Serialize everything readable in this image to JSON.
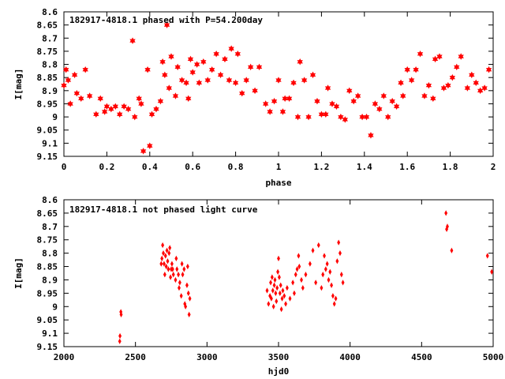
{
  "chart_data": [
    {
      "type": "scatter",
      "title": "182917-4818.1 phased with P=54.200day",
      "xlabel": "phase",
      "ylabel": "I[mag]",
      "xlim": [
        0,
        2
      ],
      "ylim": [
        9.15,
        8.6
      ],
      "y_inverted": true,
      "grid": false,
      "color": "#ff0000",
      "marker": "star",
      "x_ticks": [
        "0",
        "0.2",
        "0.4",
        "0.6",
        "0.8",
        "1",
        "1.2",
        "1.4",
        "1.6",
        "1.8",
        "2"
      ],
      "y_ticks": [
        "8.6",
        "8.65",
        "8.7",
        "8.75",
        "8.8",
        "8.85",
        "8.9",
        "8.95",
        "9",
        "9.05",
        "9.1",
        "9.15"
      ],
      "series": [
        {
          "points": [
            [
              0.0,
              8.88
            ],
            [
              0.01,
              8.82
            ],
            [
              0.02,
              8.86
            ],
            [
              0.03,
              8.95
            ],
            [
              0.05,
              8.84
            ],
            [
              0.06,
              8.91
            ],
            [
              0.08,
              8.93
            ],
            [
              0.1,
              8.82
            ],
            [
              0.12,
              8.92
            ],
            [
              0.15,
              8.99
            ],
            [
              0.17,
              8.93
            ],
            [
              0.19,
              8.98
            ],
            [
              0.2,
              8.96
            ],
            [
              0.22,
              8.97
            ],
            [
              0.24,
              8.96
            ],
            [
              0.26,
              8.99
            ],
            [
              0.28,
              8.96
            ],
            [
              0.3,
              8.97
            ],
            [
              0.32,
              8.71
            ],
            [
              0.33,
              9.0
            ],
            [
              0.35,
              8.93
            ],
            [
              0.36,
              8.95
            ],
            [
              0.37,
              9.13
            ],
            [
              0.39,
              8.82
            ],
            [
              0.4,
              9.11
            ],
            [
              0.41,
              8.99
            ],
            [
              0.43,
              8.97
            ],
            [
              0.45,
              8.94
            ],
            [
              0.46,
              8.79
            ],
            [
              0.47,
              8.84
            ],
            [
              0.48,
              8.65
            ],
            [
              0.49,
              8.89
            ],
            [
              0.5,
              8.77
            ],
            [
              0.52,
              8.92
            ],
            [
              0.53,
              8.81
            ],
            [
              0.55,
              8.86
            ],
            [
              0.57,
              8.87
            ],
            [
              0.58,
              8.93
            ],
            [
              0.59,
              8.78
            ],
            [
              0.6,
              8.83
            ],
            [
              0.62,
              8.8
            ],
            [
              0.63,
              8.87
            ],
            [
              0.65,
              8.79
            ],
            [
              0.67,
              8.86
            ],
            [
              0.69,
              8.82
            ],
            [
              0.71,
              8.76
            ],
            [
              0.73,
              8.84
            ],
            [
              0.75,
              8.78
            ],
            [
              0.77,
              8.86
            ],
            [
              0.78,
              8.74
            ],
            [
              0.8,
              8.87
            ],
            [
              0.81,
              8.76
            ],
            [
              0.83,
              8.91
            ],
            [
              0.85,
              8.86
            ],
            [
              0.87,
              8.81
            ],
            [
              0.89,
              8.9
            ],
            [
              0.91,
              8.81
            ],
            [
              0.94,
              8.95
            ],
            [
              0.96,
              8.98
            ],
            [
              0.98,
              8.94
            ],
            [
              1.0,
              8.86
            ],
            [
              1.02,
              8.98
            ],
            [
              1.03,
              8.93
            ],
            [
              1.05,
              8.93
            ],
            [
              1.07,
              8.87
            ],
            [
              1.09,
              9.0
            ],
            [
              1.1,
              8.79
            ],
            [
              1.12,
              8.86
            ],
            [
              1.14,
              9.0
            ],
            [
              1.16,
              8.84
            ],
            [
              1.18,
              8.94
            ],
            [
              1.2,
              8.99
            ],
            [
              1.22,
              8.99
            ],
            [
              1.23,
              8.89
            ],
            [
              1.25,
              8.95
            ],
            [
              1.27,
              8.96
            ],
            [
              1.29,
              9.0
            ],
            [
              1.31,
              9.01
            ],
            [
              1.33,
              8.9
            ],
            [
              1.35,
              8.94
            ],
            [
              1.37,
              8.92
            ],
            [
              1.39,
              9.0
            ],
            [
              1.41,
              9.0
            ],
            [
              1.43,
              9.07
            ],
            [
              1.45,
              8.95
            ],
            [
              1.47,
              8.97
            ],
            [
              1.49,
              8.92
            ],
            [
              1.51,
              9.0
            ],
            [
              1.53,
              8.94
            ],
            [
              1.55,
              8.96
            ],
            [
              1.57,
              8.87
            ],
            [
              1.58,
              8.92
            ],
            [
              1.6,
              8.82
            ],
            [
              1.62,
              8.86
            ],
            [
              1.64,
              8.82
            ],
            [
              1.66,
              8.76
            ],
            [
              1.68,
              8.92
            ],
            [
              1.7,
              8.88
            ],
            [
              1.72,
              8.93
            ],
            [
              1.73,
              8.78
            ],
            [
              1.75,
              8.77
            ],
            [
              1.77,
              8.89
            ],
            [
              1.79,
              8.88
            ],
            [
              1.81,
              8.85
            ],
            [
              1.83,
              8.81
            ],
            [
              1.85,
              8.77
            ],
            [
              1.88,
              8.89
            ],
            [
              1.9,
              8.84
            ],
            [
              1.92,
              8.87
            ],
            [
              1.94,
              8.9
            ],
            [
              1.96,
              8.89
            ],
            [
              1.98,
              8.82
            ]
          ]
        }
      ]
    },
    {
      "type": "scatter",
      "title": "182917-4818.1 not phased light curve",
      "xlabel": "hjd0",
      "ylabel": "I[mag]",
      "xlim": [
        2000,
        5000
      ],
      "ylim": [
        9.15,
        8.6
      ],
      "y_inverted": true,
      "grid": false,
      "color": "#ff0000",
      "marker": "diamond",
      "x_ticks": [
        "2000",
        "2500",
        "3000",
        "3500",
        "4000",
        "4500",
        "5000"
      ],
      "y_ticks": [
        "8.6",
        "8.65",
        "8.7",
        "8.75",
        "8.8",
        "8.85",
        "8.9",
        "8.95",
        "9",
        "9.05",
        "9.1",
        "9.15"
      ],
      "series": [
        {
          "points": [
            [
              2390,
              9.13
            ],
            [
              2392,
              9.11
            ],
            [
              2398,
              9.02
            ],
            [
              2400,
              9.03
            ],
            [
              2680,
              8.84
            ],
            [
              2685,
              8.82
            ],
            [
              2690,
              8.77
            ],
            [
              2695,
              8.8
            ],
            [
              2700,
              8.84
            ],
            [
              2705,
              8.88
            ],
            [
              2710,
              8.81
            ],
            [
              2715,
              8.85
            ],
            [
              2720,
              8.79
            ],
            [
              2725,
              8.83
            ],
            [
              2730,
              8.86
            ],
            [
              2735,
              8.8
            ],
            [
              2740,
              8.78
            ],
            [
              2745,
              8.89
            ],
            [
              2750,
              8.86
            ],
            [
              2755,
              8.84
            ],
            [
              2760,
              8.86
            ],
            [
              2765,
              8.88
            ],
            [
              2780,
              8.9
            ],
            [
              2785,
              8.82
            ],
            [
              2790,
              8.86
            ],
            [
              2800,
              8.88
            ],
            [
              2805,
              8.93
            ],
            [
              2810,
              8.91
            ],
            [
              2820,
              8.96
            ],
            [
              2825,
              8.84
            ],
            [
              2830,
              8.88
            ],
            [
              2840,
              8.86
            ],
            [
              2845,
              8.99
            ],
            [
              2850,
              9.0
            ],
            [
              2860,
              8.92
            ],
            [
              2865,
              8.85
            ],
            [
              2870,
              8.95
            ],
            [
              2875,
              9.03
            ],
            [
              2880,
              8.97
            ],
            [
              3420,
              8.94
            ],
            [
              3430,
              8.99
            ],
            [
              3440,
              8.96
            ],
            [
              3445,
              8.91
            ],
            [
              3450,
              8.97
            ],
            [
              3455,
              8.89
            ],
            [
              3460,
              8.94
            ],
            [
              3465,
              9.0
            ],
            [
              3470,
              8.92
            ],
            [
              3475,
              8.9
            ],
            [
              3480,
              8.95
            ],
            [
              3485,
              8.98
            ],
            [
              3490,
              8.93
            ],
            [
              3495,
              8.87
            ],
            [
              3500,
              8.82
            ],
            [
              3505,
              8.89
            ],
            [
              3510,
              8.95
            ],
            [
              3515,
              8.92
            ],
            [
              3520,
              9.01
            ],
            [
              3525,
              8.97
            ],
            [
              3530,
              8.94
            ],
            [
              3540,
              8.96
            ],
            [
              3550,
              8.99
            ],
            [
              3560,
              8.93
            ],
            [
              3580,
              8.97
            ],
            [
              3600,
              8.91
            ],
            [
              3610,
              8.95
            ],
            [
              3620,
              8.88
            ],
            [
              3630,
              8.86
            ],
            [
              3640,
              8.81
            ],
            [
              3645,
              8.85
            ],
            [
              3660,
              8.9
            ],
            [
              3670,
              8.93
            ],
            [
              3690,
              8.88
            ],
            [
              3720,
              8.84
            ],
            [
              3740,
              8.79
            ],
            [
              3760,
              8.91
            ],
            [
              3780,
              8.77
            ],
            [
              3800,
              8.93
            ],
            [
              3810,
              8.88
            ],
            [
              3820,
              8.81
            ],
            [
              3830,
              8.86
            ],
            [
              3840,
              8.84
            ],
            [
              3850,
              8.9
            ],
            [
              3860,
              8.87
            ],
            [
              3870,
              8.92
            ],
            [
              3880,
              8.96
            ],
            [
              3890,
              8.99
            ],
            [
              3900,
              8.97
            ],
            [
              3910,
              8.83
            ],
            [
              3920,
              8.76
            ],
            [
              3930,
              8.8
            ],
            [
              3940,
              8.88
            ],
            [
              3950,
              8.91
            ],
            [
              4670,
              8.65
            ],
            [
              4675,
              8.71
            ],
            [
              4680,
              8.7
            ],
            [
              4710,
              8.79
            ],
            [
              4960,
              8.81
            ],
            [
              4990,
              8.87
            ]
          ]
        }
      ]
    }
  ]
}
